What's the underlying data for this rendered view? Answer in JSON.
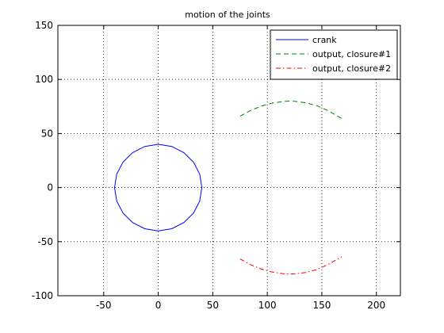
{
  "chart_data": {
    "type": "line",
    "title": "motion of the joints",
    "xlabel": "",
    "ylabel": "",
    "xlim": [
      -92,
      222
    ],
    "ylim": [
      -100,
      150
    ],
    "x_ticks": [
      -50,
      0,
      50,
      100,
      150,
      200
    ],
    "y_ticks": [
      -100,
      -50,
      0,
      50,
      100,
      150
    ],
    "grid": "dotted",
    "legend_position": "top-right",
    "series": [
      {
        "name": "crank",
        "color": "#0000ff",
        "line_style": "solid",
        "x": [
          40,
          38.04,
          32.36,
          23.51,
          12.36,
          0,
          -12.36,
          -23.51,
          -32.36,
          -38.04,
          -40,
          -38.04,
          -32.36,
          -23.51,
          -12.36,
          0,
          12.36,
          23.51,
          32.36,
          38.04,
          40
        ],
        "y": [
          0,
          12.36,
          23.51,
          32.36,
          38.04,
          40,
          38.04,
          32.36,
          23.51,
          12.36,
          0,
          -12.36,
          -23.51,
          -32.36,
          -38.04,
          -40,
          -38.04,
          -32.36,
          -23.51,
          -12.36,
          0
        ]
      },
      {
        "name": "output, closure#1",
        "color": "#008000",
        "line_style": "dashed",
        "x": [
          75,
          85,
          95,
          105,
          115,
          120,
          125,
          135,
          145,
          155,
          162,
          168
        ],
        "y": [
          66,
          71.5,
          75.5,
          78.2,
          79.6,
          80,
          79.8,
          78.5,
          75.9,
          71.5,
          67.5,
          64
        ]
      },
      {
        "name": "output, closure#2",
        "color": "#ff0000",
        "line_style": "dashdot",
        "x": [
          75,
          85,
          95,
          105,
          115,
          120,
          125,
          135,
          145,
          155,
          162,
          168
        ],
        "y": [
          -66,
          -71.5,
          -75.5,
          -78.2,
          -79.6,
          -80,
          -79.8,
          -78.5,
          -75.9,
          -71.5,
          -67.5,
          -64
        ]
      }
    ]
  }
}
